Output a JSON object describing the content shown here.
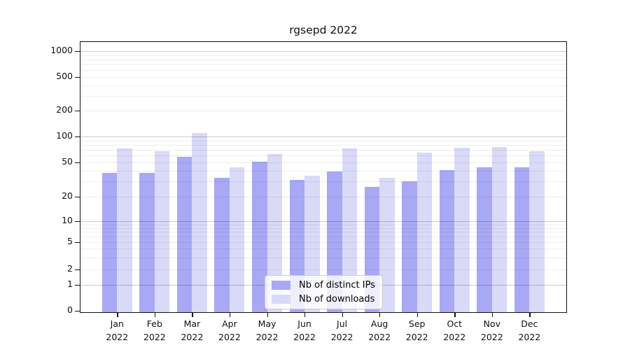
{
  "chart_data": {
    "type": "bar",
    "title": "rgsepd 2022",
    "categories": [
      "Jan",
      "Feb",
      "Mar",
      "Apr",
      "May",
      "Jun",
      "Jul",
      "Aug",
      "Sep",
      "Oct",
      "Nov",
      "Dec"
    ],
    "year_label": "2022",
    "series": [
      {
        "name": "Nb of distinct IPs",
        "color": "#a8a8f5",
        "values": [
          38,
          38,
          58,
          33,
          51,
          31,
          39,
          26,
          30,
          41,
          44,
          44
        ]
      },
      {
        "name": "Nb of downloads",
        "color": "#d9d9f8",
        "values": [
          73,
          67,
          110,
          44,
          63,
          35,
          73,
          33,
          65,
          74,
          76,
          67
        ]
      }
    ],
    "yticks": [
      0,
      1,
      2,
      5,
      10,
      20,
      50,
      100,
      200,
      500,
      1000
    ],
    "ylim": [
      0,
      1250
    ],
    "yscale": "symlog",
    "grid": "on",
    "legend_position": "lower-center"
  }
}
